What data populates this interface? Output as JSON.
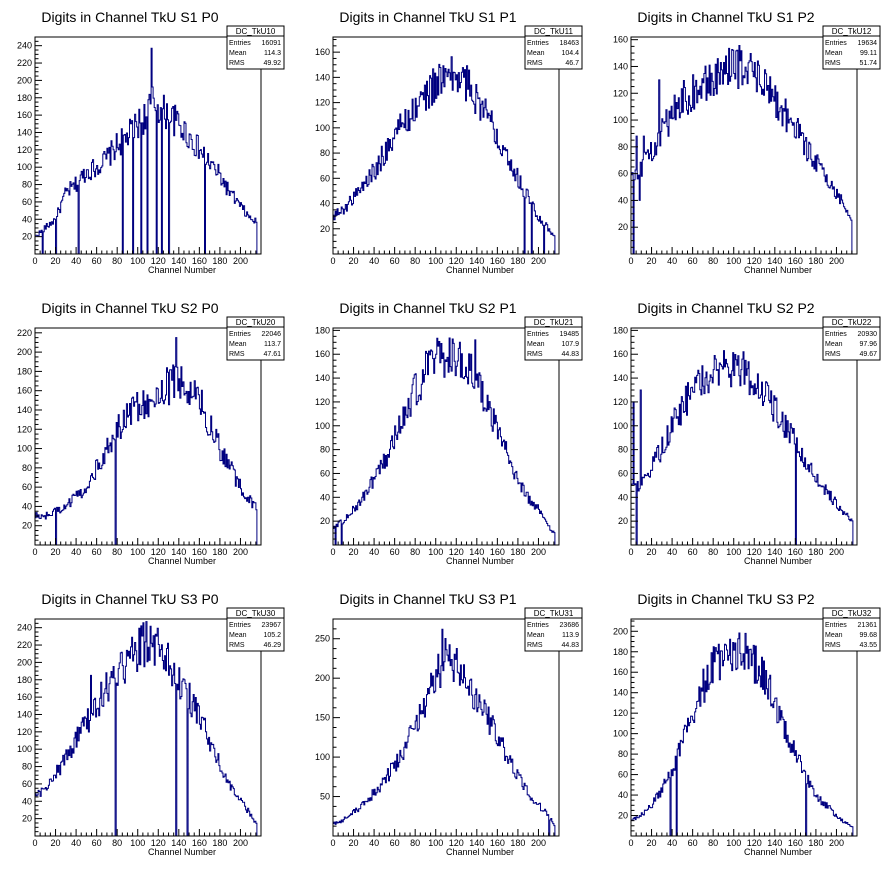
{
  "colors": {
    "hist": "#000080",
    "axis": "#000000",
    "background": "#ffffff"
  },
  "chart_data": [
    {
      "type": "histogram",
      "title": "Digits in Channel TkU S1 P0",
      "xlabel": "Channel Number",
      "ylabel": "",
      "xlim": [
        0,
        220
      ],
      "ylim": [
        0,
        250
      ],
      "xticks": [
        0,
        20,
        40,
        60,
        80,
        100,
        120,
        140,
        160,
        180,
        200
      ],
      "yticks": [
        20,
        40,
        60,
        80,
        100,
        120,
        140,
        160,
        180,
        200,
        220,
        240
      ],
      "stats": {
        "name": "DC_TkU10",
        "entries": "16091",
        "mean": "114.3",
        "rms": "49.92"
      },
      "x": [
        0,
        10,
        20,
        30,
        40,
        50,
        60,
        70,
        80,
        90,
        100,
        105,
        110,
        115,
        120,
        125,
        130,
        140,
        150,
        160,
        170,
        180,
        190,
        200,
        210,
        220
      ],
      "values": [
        20,
        30,
        40,
        70,
        80,
        95,
        100,
        110,
        125,
        135,
        150,
        155,
        165,
        175,
        170,
        165,
        160,
        150,
        135,
        120,
        105,
        90,
        70,
        55,
        40,
        35
      ],
      "spikes": [
        {
          "x": 7,
          "v": 0
        },
        {
          "x": 20,
          "v": 0
        },
        {
          "x": 42,
          "v": 0
        },
        {
          "x": 85,
          "v": 0
        },
        {
          "x": 95,
          "v": 0
        },
        {
          "x": 103,
          "v": 0
        },
        {
          "x": 109,
          "v": 0
        },
        {
          "x": 113,
          "v": 237
        },
        {
          "x": 118,
          "v": 0
        },
        {
          "x": 123,
          "v": 0
        },
        {
          "x": 130,
          "v": 0
        },
        {
          "x": 165,
          "v": 0
        }
      ]
    },
    {
      "type": "histogram",
      "title": "Digits in Channel TkU S1 P1",
      "xlabel": "Channel Number",
      "ylabel": "",
      "xlim": [
        0,
        220
      ],
      "ylim": [
        0,
        172
      ],
      "xticks": [
        0,
        20,
        40,
        60,
        80,
        100,
        120,
        140,
        160,
        180,
        200
      ],
      "yticks": [
        20,
        40,
        60,
        80,
        100,
        120,
        140,
        160
      ],
      "stats": {
        "name": "DC_TkU11",
        "entries": "18463",
        "mean": "104.4",
        "rms": "46.7"
      },
      "x": [
        0,
        10,
        20,
        30,
        40,
        50,
        60,
        70,
        80,
        90,
        100,
        110,
        120,
        130,
        140,
        150,
        160,
        170,
        180,
        190,
        200,
        210,
        215
      ],
      "values": [
        30,
        35,
        45,
        55,
        65,
        80,
        95,
        105,
        115,
        125,
        135,
        140,
        140,
        135,
        125,
        110,
        95,
        80,
        60,
        45,
        30,
        20,
        15
      ],
      "spikes": [
        {
          "x": 186,
          "v": 0
        },
        {
          "x": 193,
          "v": 0
        },
        {
          "x": 205,
          "v": 0
        }
      ]
    },
    {
      "type": "histogram",
      "title": "Digits in Channel TkU S1 P2",
      "xlabel": "Channel Number",
      "ylabel": "",
      "xlim": [
        0,
        220
      ],
      "ylim": [
        0,
        162
      ],
      "xticks": [
        0,
        20,
        40,
        60,
        80,
        100,
        120,
        140,
        160,
        180,
        200
      ],
      "yticks": [
        20,
        40,
        60,
        80,
        100,
        120,
        140,
        160
      ],
      "stats": {
        "name": "DC_TkU12",
        "entries": "19634",
        "mean": "99.11",
        "rms": "51.74"
      },
      "x": [
        0,
        10,
        20,
        30,
        40,
        50,
        60,
        70,
        80,
        90,
        100,
        110,
        120,
        130,
        140,
        150,
        160,
        170,
        180,
        190,
        200,
        210,
        215
      ],
      "values": [
        60,
        65,
        75,
        90,
        105,
        115,
        120,
        125,
        130,
        135,
        140,
        140,
        135,
        125,
        115,
        105,
        95,
        80,
        70,
        55,
        45,
        35,
        25
      ],
      "spikes": [
        {
          "x": 2,
          "v": 0
        },
        {
          "x": 5,
          "v": 88
        },
        {
          "x": 8,
          "v": 40
        },
        {
          "x": 12,
          "v": 88
        },
        {
          "x": 27,
          "v": 130
        },
        {
          "x": 215,
          "v": 0
        }
      ]
    },
    {
      "type": "histogram",
      "title": "Digits in Channel TkU S2 P0",
      "xlabel": "Channel Number",
      "ylabel": "",
      "xlim": [
        0,
        220
      ],
      "ylim": [
        0,
        225
      ],
      "xticks": [
        0,
        20,
        40,
        60,
        80,
        100,
        120,
        140,
        160,
        180,
        200
      ],
      "yticks": [
        20,
        40,
        60,
        80,
        100,
        120,
        140,
        160,
        180,
        200,
        220
      ],
      "stats": {
        "name": "DC_TkU20",
        "entries": "22046",
        "mean": "113.7",
        "rms": "47.61"
      },
      "x": [
        0,
        10,
        20,
        30,
        40,
        50,
        60,
        70,
        80,
        90,
        100,
        110,
        120,
        130,
        140,
        150,
        160,
        170,
        180,
        190,
        200,
        210,
        220
      ],
      "values": [
        30,
        30,
        35,
        40,
        50,
        60,
        80,
        100,
        120,
        135,
        145,
        150,
        160,
        165,
        170,
        160,
        150,
        125,
        100,
        80,
        60,
        45,
        35
      ],
      "spikes": [
        {
          "x": 20,
          "v": 0
        },
        {
          "x": 78,
          "v": 0
        },
        {
          "x": 137,
          "v": 215
        }
      ]
    },
    {
      "type": "histogram",
      "title": "Digits in Channel TkU S2 P1",
      "xlabel": "Channel Number",
      "ylabel": "",
      "xlim": [
        0,
        220
      ],
      "ylim": [
        0,
        182
      ],
      "xticks": [
        0,
        20,
        40,
        60,
        80,
        100,
        120,
        140,
        160,
        180,
        200
      ],
      "yticks": [
        20,
        40,
        60,
        80,
        100,
        120,
        140,
        160,
        180
      ],
      "stats": {
        "name": "DC_TkU21",
        "entries": "19485",
        "mean": "107.9",
        "rms": "44.83"
      },
      "x": [
        0,
        10,
        20,
        30,
        40,
        50,
        60,
        70,
        80,
        90,
        100,
        110,
        120,
        130,
        140,
        150,
        160,
        170,
        180,
        190,
        200,
        210,
        215
      ],
      "values": [
        15,
        20,
        30,
        40,
        55,
        70,
        90,
        110,
        130,
        145,
        155,
        158,
        155,
        150,
        135,
        115,
        95,
        75,
        55,
        40,
        30,
        15,
        10
      ],
      "spikes": [
        {
          "x": 2,
          "v": 0
        },
        {
          "x": 8,
          "v": 0
        },
        {
          "x": 138,
          "v": 172
        }
      ]
    },
    {
      "type": "histogram",
      "title": "Digits in Channel TkU S2 P2",
      "xlabel": "Channel Number",
      "ylabel": "",
      "xlim": [
        0,
        220
      ],
      "ylim": [
        0,
        182
      ],
      "xticks": [
        0,
        20,
        40,
        60,
        80,
        100,
        120,
        140,
        160,
        180,
        200
      ],
      "yticks": [
        20,
        40,
        60,
        80,
        100,
        120,
        140,
        160,
        180
      ],
      "stats": {
        "name": "DC_TkU22",
        "entries": "20930",
        "mean": "97.96",
        "rms": "49.67"
      },
      "x": [
        0,
        10,
        20,
        30,
        40,
        50,
        60,
        70,
        80,
        90,
        100,
        110,
        120,
        130,
        140,
        150,
        160,
        170,
        180,
        190,
        200,
        210,
        215
      ],
      "values": [
        45,
        50,
        65,
        80,
        100,
        115,
        130,
        140,
        145,
        150,
        150,
        145,
        140,
        130,
        115,
        100,
        85,
        70,
        55,
        45,
        35,
        25,
        20
      ],
      "spikes": [
        {
          "x": 2,
          "v": 120
        },
        {
          "x": 5,
          "v": 0
        },
        {
          "x": 9,
          "v": 130
        },
        {
          "x": 160,
          "v": 0
        }
      ]
    },
    {
      "type": "histogram",
      "title": "Digits in Channel TkU S3 P0",
      "xlabel": "Channel Number",
      "ylabel": "",
      "xlim": [
        0,
        220
      ],
      "ylim": [
        0,
        250
      ],
      "xticks": [
        0,
        20,
        40,
        60,
        80,
        100,
        120,
        140,
        160,
        180,
        200
      ],
      "yticks": [
        20,
        40,
        60,
        80,
        100,
        120,
        140,
        160,
        180,
        200,
        220,
        240
      ],
      "stats": {
        "name": "DC_TkU30",
        "entries": "23967",
        "mean": "105.2",
        "rms": "46.29"
      },
      "x": [
        0,
        10,
        20,
        30,
        40,
        50,
        60,
        70,
        80,
        90,
        100,
        110,
        120,
        130,
        140,
        150,
        160,
        170,
        180,
        190,
        200,
        210,
        215
      ],
      "values": [
        45,
        55,
        70,
        90,
        110,
        130,
        150,
        170,
        185,
        200,
        215,
        225,
        215,
        200,
        180,
        160,
        135,
        110,
        85,
        60,
        40,
        25,
        15
      ],
      "spikes": [
        {
          "x": 54,
          "v": 185
        },
        {
          "x": 78,
          "v": 0
        },
        {
          "x": 137,
          "v": 0
        },
        {
          "x": 145,
          "v": 180
        },
        {
          "x": 148,
          "v": 0
        }
      ]
    },
    {
      "type": "histogram",
      "title": "Digits in Channel TkU S3 P1",
      "xlabel": "Channel Number",
      "ylabel": "",
      "xlim": [
        0,
        220
      ],
      "ylim": [
        0,
        275
      ],
      "xticks": [
        0,
        20,
        40,
        60,
        80,
        100,
        120,
        140,
        160,
        180,
        200
      ],
      "yticks": [
        50,
        100,
        150,
        200,
        250
      ],
      "stats": {
        "name": "DC_TkU31",
        "entries": "23686",
        "mean": "113.9",
        "rms": "44.83"
      },
      "x": [
        0,
        10,
        20,
        30,
        40,
        50,
        60,
        70,
        80,
        90,
        100,
        110,
        120,
        130,
        140,
        150,
        160,
        170,
        180,
        190,
        200,
        210,
        215
      ],
      "values": [
        15,
        20,
        30,
        40,
        55,
        70,
        90,
        110,
        140,
        170,
        200,
        225,
        215,
        190,
        170,
        150,
        125,
        100,
        75,
        55,
        40,
        25,
        15
      ],
      "spikes": [
        {
          "x": 106,
          "v": 262
        },
        {
          "x": 210,
          "v": 0
        }
      ]
    },
    {
      "type": "histogram",
      "title": "Digits in Channel TkU S3 P2",
      "xlabel": "Channel Number",
      "ylabel": "",
      "xlim": [
        0,
        220
      ],
      "ylim": [
        0,
        212
      ],
      "xticks": [
        0,
        20,
        40,
        60,
        80,
        100,
        120,
        140,
        160,
        180,
        200
      ],
      "yticks": [
        20,
        40,
        60,
        80,
        100,
        120,
        140,
        160,
        180,
        200
      ],
      "stats": {
        "name": "DC_TkU32",
        "entries": "21361",
        "mean": "99.68",
        "rms": "43.55"
      },
      "x": [
        0,
        10,
        20,
        30,
        40,
        50,
        60,
        70,
        80,
        90,
        100,
        110,
        120,
        130,
        140,
        150,
        160,
        170,
        180,
        190,
        200,
        210,
        215
      ],
      "values": [
        15,
        20,
        30,
        45,
        65,
        90,
        120,
        145,
        165,
        175,
        180,
        178,
        170,
        155,
        130,
        105,
        80,
        60,
        40,
        30,
        20,
        12,
        10
      ],
      "spikes": [
        {
          "x": 38,
          "v": 0
        },
        {
          "x": 44,
          "v": 0
        },
        {
          "x": 170,
          "v": 0
        }
      ]
    }
  ]
}
